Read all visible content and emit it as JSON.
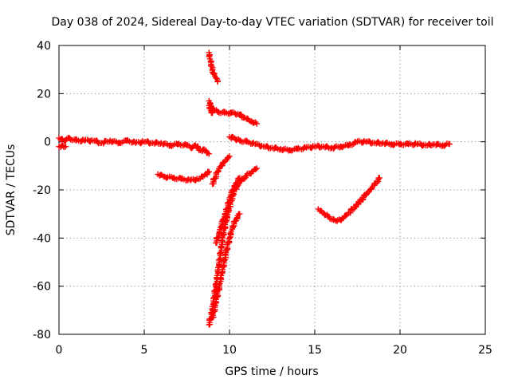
{
  "chart_data": {
    "type": "scatter",
    "title": "Day 038 of 2024, Sidereal Day-to-day VTEC variation (SDTVAR) for receiver toil",
    "xlabel": "GPS time / hours",
    "ylabel": "SDTVAR / TECUs",
    "xlim": [
      0,
      25
    ],
    "ylim": [
      -80,
      40
    ],
    "xticks": [
      "0",
      "5",
      "10",
      "15",
      "20",
      "25"
    ],
    "yticks": [
      "-80",
      "-60",
      "-40",
      "-20",
      "0",
      "20",
      "40"
    ],
    "grid": true,
    "marker": "plus",
    "color": "#ff0000",
    "series": [
      {
        "segments": [
          {
            "x": [
              0.0,
              0.3,
              0.6,
              1.0,
              1.5,
              2.0,
              2.5,
              3.0,
              3.5,
              4.0,
              4.5,
              5.0,
              5.5,
              6.0,
              6.5,
              7.0,
              7.5,
              7.8,
              8.0,
              8.3,
              8.6,
              8.8
            ],
            "y": [
              1.5,
              0.5,
              1.5,
              0.5,
              0.5,
              0.5,
              -0.5,
              0.5,
              -0.5,
              0.5,
              -0.5,
              0.0,
              -0.5,
              -0.5,
              -1.5,
              -1.0,
              -1.5,
              -2.5,
              -1.5,
              -3.5,
              -3.5,
              -5.0
            ]
          },
          {
            "x": [
              0.0,
              0.2,
              0.4
            ],
            "y": [
              -2.0,
              -1.5,
              -2.0
            ]
          },
          {
            "x": [
              5.8,
              6.2,
              6.7,
              7.2,
              7.7,
              8.2,
              8.6,
              8.8
            ],
            "y": [
              -13.5,
              -14.5,
              -15.0,
              -15.5,
              -16.0,
              -15.5,
              -13.5,
              -12.5
            ]
          },
          {
            "x": [
              8.8,
              8.9,
              9.0,
              9.1,
              9.2,
              9.3
            ],
            "y": [
              37.0,
              33.0,
              30.0,
              28.0,
              26.5,
              25.0
            ]
          },
          {
            "x": [
              8.8,
              9.0,
              9.3,
              9.7,
              10.1,
              10.5,
              10.9,
              11.3,
              11.6
            ],
            "y": [
              17.0,
              14.0,
              12.5,
              12.0,
              12.0,
              11.5,
              10.0,
              8.5,
              7.5
            ]
          },
          {
            "x": [
              8.8,
              8.9,
              9.0
            ],
            "y": [
              15.0,
              13.0,
              12.0
            ]
          },
          {
            "x": [
              9.0,
              9.3,
              9.6,
              10.0
            ],
            "y": [
              -17.5,
              -12.5,
              -9.0,
              -6.0
            ]
          },
          {
            "x": [
              8.8,
              9.0,
              9.2,
              9.4,
              9.6,
              9.8,
              10.0,
              10.2,
              10.4,
              10.7,
              11.0,
              11.3,
              11.6
            ],
            "y": [
              -76.0,
              -70.0,
              -60.0,
              -50.0,
              -40.0,
              -33.0,
              -27.0,
              -22.0,
              -19.0,
              -16.0,
              -14.0,
              -12.5,
              -11.0
            ]
          },
          {
            "x": [
              9.2,
              9.4,
              9.6,
              9.8,
              10.0,
              10.2,
              10.4,
              10.6
            ],
            "y": [
              -42.0,
              -38.0,
              -33.0,
              -29.0,
              -24.0,
              -20.0,
              -17.0,
              -15.0
            ]
          },
          {
            "x": [
              9.0,
              9.2,
              9.4,
              9.6,
              9.8,
              10.0,
              10.2,
              10.4,
              10.6
            ],
            "y": [
              -73.0,
              -67.0,
              -60.0,
              -53.0,
              -46.0,
              -40.0,
              -35.0,
              -32.0,
              -30.0
            ]
          },
          {
            "x": [
              10.0,
              10.3,
              10.6,
              11.0,
              11.5,
              12.0,
              12.5,
              13.0,
              13.5,
              14.0,
              14.5,
              15.0,
              15.5,
              16.0,
              16.5,
              17.0,
              17.5,
              18.0,
              18.5,
              19.0,
              19.5,
              20.0,
              20.5,
              21.0,
              21.5,
              22.0,
              22.5,
              22.9
            ],
            "y": [
              2.0,
              1.5,
              0.5,
              0.0,
              -1.0,
              -2.0,
              -2.5,
              -3.0,
              -3.5,
              -3.0,
              -2.5,
              -2.0,
              -2.0,
              -2.5,
              -2.0,
              -1.5,
              0.0,
              0.0,
              -0.5,
              -0.5,
              -1.0,
              -1.0,
              -1.0,
              -1.0,
              -1.5,
              -1.0,
              -1.5,
              -1.0
            ]
          },
          {
            "x": [
              15.2,
              15.5,
              15.8,
              16.1,
              16.3,
              16.6,
              17.0,
              17.5,
              18.0,
              18.5,
              18.8
            ],
            "y": [
              -28.0,
              -29.5,
              -31.0,
              -32.5,
              -33.0,
              -32.0,
              -29.5,
              -26.0,
              -22.0,
              -18.0,
              -15.0
            ]
          }
        ]
      }
    ]
  }
}
